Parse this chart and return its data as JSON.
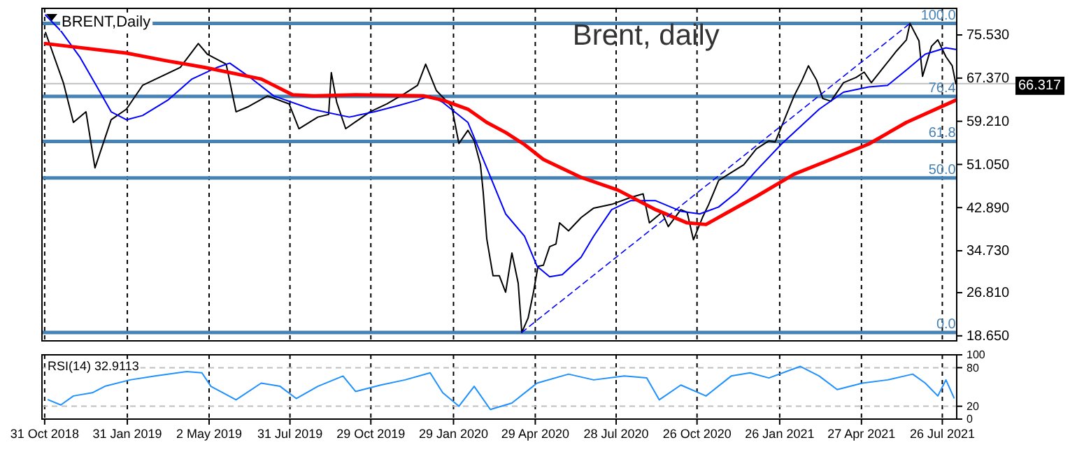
{
  "chart_data": [
    {
      "type": "line",
      "title": "BRENT,Daily",
      "annotations": [
        "Brent, daily",
        {
          "text": "0.0",
          "x": "2021-08-10",
          "y": 19.3
        },
        {
          "text": "50.0",
          "x": "2021-08-10",
          "y": 48.5
        },
        {
          "text": "61.8",
          "x": "2021-08-10",
          "y": 55.4
        },
        {
          "text": "76.4",
          "x": "2021-08-10",
          "y": 63.9
        },
        {
          "text": "100.0",
          "x": "2021-08-10",
          "y": 77.7
        }
      ],
      "xlim": [
        "2018-10-28",
        "2021-08-11"
      ],
      "ylim": [
        17.7,
        80.55
      ],
      "xticks": [
        {
          "value": "2018-10-31",
          "label": null
        },
        {
          "value": "2019-01-31",
          "label": null
        },
        {
          "value": "2019-05-02",
          "label": null
        },
        {
          "value": "2019-07-31",
          "label": null
        },
        {
          "value": "2019-10-29",
          "label": null
        },
        {
          "value": "2020-01-29",
          "label": null
        },
        {
          "value": "2020-04-29",
          "label": null
        },
        {
          "value": "2020-07-28",
          "label": null
        },
        {
          "value": "2020-10-26",
          "label": null
        },
        {
          "value": "2021-01-26",
          "label": null
        },
        {
          "value": "2021-04-27",
          "label": null
        },
        {
          "value": "2021-07-26",
          "label": null
        }
      ],
      "yticks": [
        {
          "value": 18.65,
          "label": "18.650"
        },
        {
          "value": 26.81,
          "label": "26.810"
        },
        {
          "value": 34.73,
          "label": "34.730"
        },
        {
          "value": 42.89,
          "label": "42.890"
        },
        {
          "value": 51.05,
          "label": "51.050"
        },
        {
          "value": 59.21,
          "label": "59.210"
        },
        {
          "value": 67.37,
          "label": "67.370"
        },
        {
          "value": 75.53,
          "label": "75.530"
        }
      ],
      "tick_labels": "y",
      "grid": "x",
      "ref_lines": [
        {
          "axis": "y",
          "value": 19.3,
          "color": "#4682b4"
        },
        {
          "axis": "y",
          "value": 48.5,
          "color": "#4682b4"
        },
        {
          "axis": "y",
          "value": 55.4,
          "color": "#4682b4"
        },
        {
          "axis": "y",
          "value": 63.9,
          "color": "#4682b4"
        },
        {
          "axis": "y",
          "value": 77.7,
          "color": "#4682b4"
        },
        {
          "axis": "y",
          "value": 66.317,
          "label": "66.317",
          "color": "#c0c0c0"
        }
      ],
      "series": [
        {
          "color": "#000000",
          "x": [
            "2018-11-01",
            "2018-11-21",
            "2018-12-02",
            "2018-12-16",
            "2018-12-26",
            "2019-01-13",
            "2019-01-30",
            "2019-02-17",
            "2019-03-31",
            "2019-04-20",
            "2019-04-30",
            "2019-05-21",
            "2019-06-01",
            "2019-06-15",
            "2019-07-06",
            "2019-07-30",
            "2019-08-10",
            "2019-08-31",
            "2019-09-12",
            "2019-09-15",
            "2019-09-21",
            "2019-10-01",
            "2019-10-28",
            "2019-11-16",
            "2019-12-06",
            "2019-12-20",
            "2019-12-29",
            "2020-01-10",
            "2020-01-27",
            "2020-02-04",
            "2020-02-14",
            "2020-02-21",
            "2020-02-28",
            "2020-03-02",
            "2020-03-06",
            "2020-03-13",
            "2020-03-20",
            "2020-03-27",
            "2020-04-03",
            "2020-04-10",
            "2020-04-14",
            "2020-04-21",
            "2020-04-27",
            "2020-05-02",
            "2020-05-08",
            "2020-05-15",
            "2020-05-22",
            "2020-05-26",
            "2020-06-05",
            "2020-06-19",
            "2020-07-03",
            "2020-07-23",
            "2020-08-13",
            "2020-08-27",
            "2020-09-03",
            "2020-09-17",
            "2020-09-24",
            "2020-10-08",
            "2020-10-15",
            "2020-10-22",
            "2020-11-01",
            "2020-11-08",
            "2020-11-19",
            "2020-12-03",
            "2020-12-17",
            "2020-12-31",
            "2021-01-14",
            "2021-01-21",
            "2021-01-30",
            "2021-02-11",
            "2021-02-20",
            "2021-02-27",
            "2021-03-08",
            "2021-03-15",
            "2021-03-24",
            "2021-04-07",
            "2021-04-21",
            "2021-04-30",
            "2021-05-08",
            "2021-05-22",
            "2021-06-05",
            "2021-06-16",
            "2021-06-20",
            "2021-06-30",
            "2021-07-04",
            "2021-07-14",
            "2021-07-21",
            "2021-07-30",
            "2021-08-06",
            "2021-08-10"
          ],
          "values": [
            76.0,
            66.4,
            59.0,
            61.0,
            50.4,
            59.5,
            61.5,
            66.0,
            69.4,
            73.9,
            71.9,
            70.0,
            61.0,
            62.0,
            64.0,
            62.5,
            57.8,
            60.0,
            60.5,
            68.4,
            62.8,
            57.8,
            61.0,
            62.5,
            64.5,
            66.0,
            70.0,
            65.0,
            62.0,
            55.0,
            57.5,
            55.5,
            51.0,
            45.9,
            37.0,
            30.0,
            30.0,
            26.9,
            34.3,
            28.6,
            19.3,
            22.0,
            26.9,
            31.8,
            32.0,
            35.5,
            36.0,
            40.0,
            38.5,
            41.0,
            42.8,
            43.5,
            44.8,
            45.5,
            40.0,
            42.0,
            39.3,
            42.5,
            42.0,
            36.8,
            41.0,
            43.5,
            48.0,
            49.5,
            51.0,
            54.0,
            55.5,
            55.3,
            59.0,
            64.0,
            67.0,
            69.7,
            67.0,
            63.5,
            63.0,
            66.5,
            67.5,
            68.5,
            66.5,
            69.5,
            72.5,
            74.6,
            77.7,
            74.4,
            67.7,
            73.4,
            74.6,
            71.4,
            69.7,
            66.3
          ]
        },
        {
          "color": "#0000ff",
          "x": [
            "2018-11-01",
            "2018-11-18",
            "2018-12-09",
            "2018-12-30",
            "2019-01-13",
            "2019-01-30",
            "2019-02-17",
            "2019-03-17",
            "2019-04-13",
            "2019-05-11",
            "2019-05-25",
            "2019-06-15",
            "2019-07-13",
            "2019-08-24",
            "2019-10-05",
            "2019-11-02",
            "2019-11-29",
            "2019-12-20",
            "2020-01-03",
            "2020-01-17",
            "2020-02-14",
            "2020-03-06",
            "2020-03-27",
            "2020-04-17",
            "2020-05-01",
            "2020-05-15",
            "2020-05-29",
            "2020-06-19",
            "2020-07-03",
            "2020-07-23",
            "2020-08-13",
            "2020-09-10",
            "2020-10-08",
            "2020-10-29",
            "2020-11-19",
            "2020-12-10",
            "2020-12-31",
            "2021-01-28",
            "2021-02-18",
            "2021-03-11",
            "2021-04-07",
            "2021-05-05",
            "2021-05-26",
            "2021-06-16",
            "2021-07-07",
            "2021-07-30",
            "2021-08-10"
          ],
          "values": [
            79.3,
            76.3,
            71.4,
            65.2,
            61.0,
            59.5,
            60.3,
            63.2,
            67.2,
            69.4,
            70.2,
            67.7,
            64.0,
            61.5,
            60.0,
            61.0,
            62.2,
            63.2,
            64.0,
            62.8,
            59.0,
            50.4,
            41.7,
            37.5,
            31.8,
            29.8,
            30.2,
            33.5,
            37.5,
            42.5,
            44.2,
            44.2,
            42.2,
            41.7,
            43.0,
            45.9,
            49.9,
            54.9,
            58.2,
            61.5,
            64.7,
            65.7,
            66.0,
            68.9,
            71.9,
            73.1,
            72.8
          ]
        },
        {
          "color": "#ff0000",
          "x": [
            "2018-11-01",
            "2019-01-30",
            "2019-03-17",
            "2019-04-27",
            "2019-06-29",
            "2019-08-03",
            "2019-08-27",
            "2019-10-12",
            "2019-12-27",
            "2020-01-17",
            "2020-02-14",
            "2020-03-06",
            "2020-03-27",
            "2020-04-17",
            "2020-05-08",
            "2020-06-19",
            "2020-07-30",
            "2020-09-10",
            "2020-10-15",
            "2020-11-05",
            "2020-11-26",
            "2020-12-31",
            "2021-02-11",
            "2021-03-24",
            "2021-05-05",
            "2021-06-16",
            "2021-08-10"
          ],
          "values": [
            73.9,
            72.1,
            70.6,
            69.4,
            67.2,
            64.2,
            64.0,
            64.2,
            64.0,
            63.2,
            61.5,
            59.0,
            57.1,
            54.8,
            52.0,
            48.6,
            46.2,
            42.5,
            40.0,
            39.7,
            41.7,
            45.0,
            49.2,
            52.0,
            54.9,
            59.0,
            63.2
          ]
        },
        {
          "color": "#0000ff",
          "line_style": "dashed",
          "x": [
            "2020-04-14",
            "2021-06-20"
          ],
          "values": [
            19.3,
            77.7
          ]
        }
      ]
    },
    {
      "type": "line",
      "title": "RSI(14) 32.9113",
      "xlim": [
        "2018-10-28",
        "2021-08-11"
      ],
      "ylim": [
        0,
        100
      ],
      "yticks": [
        0,
        20,
        80,
        100
      ],
      "grid": "x",
      "xticks": [
        {
          "value": "2018-10-31",
          "label": "31 Oct 2018"
        },
        {
          "value": "2019-01-31",
          "label": "31 Jan 2019"
        },
        {
          "value": "2019-05-02",
          "label": "2 May 2019"
        },
        {
          "value": "2019-07-31",
          "label": "31 Jul 2019"
        },
        {
          "value": "2019-10-29",
          "label": "29 Oct 2019"
        },
        {
          "value": "2020-01-29",
          "label": "29 Jan 2020"
        },
        {
          "value": "2020-04-29",
          "label": "29 Apr 2020"
        },
        {
          "value": "2020-07-28",
          "label": "28 Jul 2020"
        },
        {
          "value": "2020-10-26",
          "label": "26 Oct 2020"
        },
        {
          "value": "2021-01-26",
          "label": "26 Jan 2021"
        },
        {
          "value": "2021-04-27",
          "label": "27 Apr 2021"
        },
        {
          "value": "2021-07-26",
          "label": "26 Jul 2021"
        }
      ],
      "ref_lines": [
        {
          "axis": "y",
          "value": 20,
          "color": "#c0c0c0",
          "line_style": "dashed"
        },
        {
          "axis": "y",
          "value": 80,
          "color": "#c0c0c0",
          "line_style": "dashed"
        }
      ],
      "series": [
        {
          "color": "#1e90ff",
          "x": [
            "2018-11-04",
            "2018-11-18",
            "2018-12-02",
            "2018-12-23",
            "2019-01-06",
            "2019-02-03",
            "2019-03-03",
            "2019-04-07",
            "2019-04-24",
            "2019-05-04",
            "2019-06-01",
            "2019-06-29",
            "2019-07-20",
            "2019-08-07",
            "2019-08-31",
            "2019-09-28",
            "2019-10-12",
            "2019-11-09",
            "2019-12-06",
            "2020-01-03",
            "2020-01-17",
            "2020-02-04",
            "2020-02-21",
            "2020-03-10",
            "2020-04-03",
            "2020-05-01",
            "2020-06-05",
            "2020-07-03",
            "2020-08-06",
            "2020-08-31",
            "2020-09-14",
            "2020-10-08",
            "2020-11-05",
            "2020-12-03",
            "2020-12-24",
            "2021-01-14",
            "2021-02-18",
            "2021-03-11",
            "2021-03-31",
            "2021-04-28",
            "2021-05-26",
            "2021-06-23",
            "2021-07-07",
            "2021-07-21",
            "2021-07-30",
            "2021-08-08"
          ],
          "values": [
            30,
            22,
            36,
            41,
            51,
            61,
            67,
            74,
            72,
            51,
            30,
            56,
            51,
            32,
            51,
            67,
            43,
            53,
            61,
            72,
            41,
            20,
            51,
            15,
            25,
            56,
            70,
            61,
            67,
            64,
            30,
            53,
            36,
            67,
            72,
            64,
            82,
            67,
            46,
            56,
            61,
            70,
            56,
            36,
            61,
            33
          ]
        }
      ]
    }
  ]
}
